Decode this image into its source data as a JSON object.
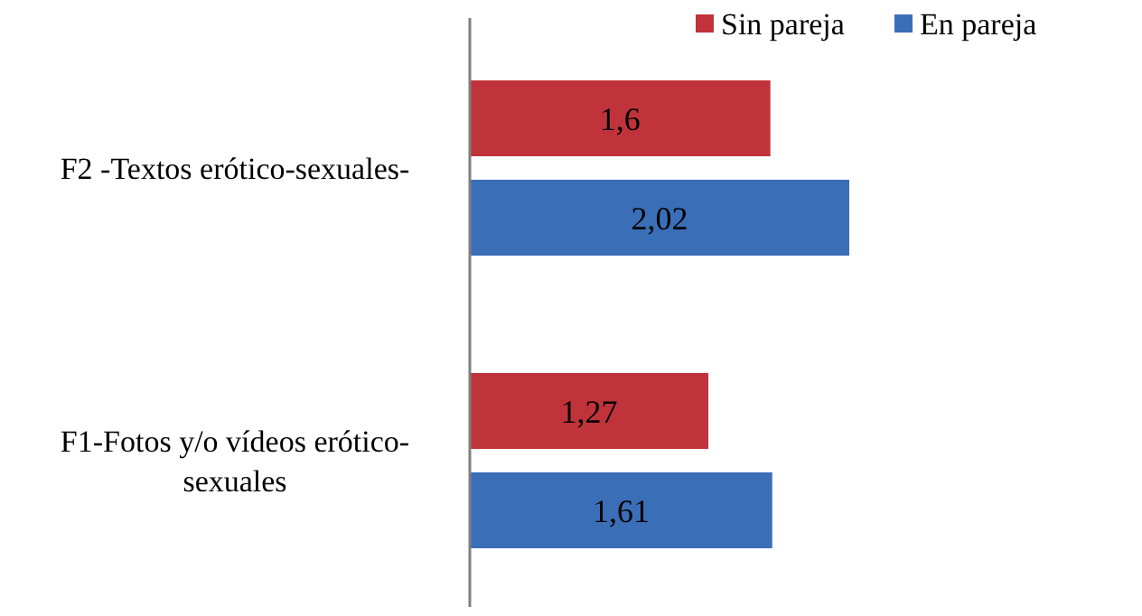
{
  "chart_data": {
    "type": "bar",
    "orientation": "horizontal",
    "categories": [
      "F2 -Textos erótico-sexuales-",
      "F1-Fotos y/o vídeos erótico-sexuales"
    ],
    "series": [
      {
        "name": "Sin pareja",
        "color": "#c0333a",
        "values": [
          1.6,
          1.27
        ],
        "value_labels": [
          "1,6",
          "1,27"
        ]
      },
      {
        "name": "En pareja",
        "color": "#3a6fb8",
        "values": [
          2.02,
          1.61
        ],
        "value_labels": [
          "2,02",
          "1,61"
        ]
      }
    ],
    "tick_labels": "y",
    "legend": "top right"
  }
}
